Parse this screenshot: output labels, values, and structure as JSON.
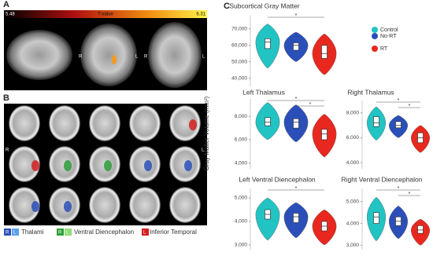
{
  "panels": {
    "a": "A",
    "b": "B",
    "c": "C"
  },
  "colorbar": {
    "min_label": "5.48",
    "title": "T-value",
    "max_label": "6.31"
  },
  "orientation": {
    "right": "R",
    "left": "L"
  },
  "atlas_legend": {
    "thalami": {
      "r": "R",
      "l": "L",
      "label": "Thalami"
    },
    "ventral_diencephalon": {
      "r": "R",
      "l": "L",
      "label": "Ventral Diencephalon"
    },
    "inferior_temporal": {
      "l": "L",
      "label": "Inferior Temporal"
    }
  },
  "y_axis_label": "Gray Matter Volume (mm³)",
  "legend": [
    {
      "name": "Control",
      "color": "#22c3c3"
    },
    {
      "name": "No-RT",
      "color": "#2b4fb8"
    },
    {
      "name": "RT",
      "color": "#e8281e"
    }
  ],
  "chart_data": [
    {
      "type": "violin",
      "title": "Subcortical Gray Matter",
      "ylim": [
        35000,
        78000
      ],
      "yticks": [
        {
          "value": 40000,
          "label": "40,000"
        },
        {
          "value": 50000,
          "label": "50,000"
        },
        {
          "value": 60000,
          "label": "60,000"
        },
        {
          "value": 70000,
          "label": "70,000"
        }
      ],
      "series": [
        {
          "name": "Control",
          "min": 46000,
          "q1": 58000,
          "median": 62000,
          "q3": 64000,
          "max": 73000
        },
        {
          "name": "No-RT",
          "min": 50000,
          "q1": 57000,
          "median": 60000,
          "q3": 61500,
          "max": 68000
        },
        {
          "name": "RT",
          "min": 42000,
          "q1": 52000,
          "median": 55000,
          "q3": 60000,
          "max": 67000
        }
      ],
      "significance": [
        "*"
      ]
    },
    {
      "type": "violin",
      "title": "Left Thalamus",
      "ylim": [
        3500,
        9500
      ],
      "yticks": [
        {
          "value": 4000,
          "label": "4,000"
        },
        {
          "value": 6000,
          "label": "6,000"
        },
        {
          "value": 8000,
          "label": "8,000"
        }
      ],
      "series": [
        {
          "name": "Control",
          "min": 6000,
          "q1": 7200,
          "median": 7500,
          "q3": 7900,
          "max": 9200
        },
        {
          "name": "No-RT",
          "min": 5800,
          "q1": 7000,
          "median": 7500,
          "q3": 7800,
          "max": 9000
        },
        {
          "name": "RT",
          "min": 4500,
          "q1": 6000,
          "median": 6500,
          "q3": 6900,
          "max": 8200
        }
      ],
      "significance": [
        "*",
        "*"
      ]
    },
    {
      "type": "violin",
      "title": "Right Thalamus",
      "ylim": [
        3500,
        9000
      ],
      "yticks": [
        {
          "value": 4000,
          "label": "4,000"
        },
        {
          "value": 6000,
          "label": "6,000"
        },
        {
          "value": 8000,
          "label": "8,000"
        }
      ],
      "series": [
        {
          "name": "Control",
          "min": 5800,
          "q1": 6900,
          "median": 7200,
          "q3": 7700,
          "max": 8500
        },
        {
          "name": "No-RT",
          "min": 6000,
          "q1": 6800,
          "median": 7000,
          "q3": 7300,
          "max": 7800
        },
        {
          "name": "RT",
          "min": 4800,
          "q1": 5600,
          "median": 6000,
          "q3": 6400,
          "max": 7000
        }
      ],
      "significance": [
        "*",
        "*"
      ]
    },
    {
      "type": "violin",
      "title": "Left Ventral Diencephalon",
      "ylim": [
        2800,
        5400
      ],
      "yticks": [
        {
          "value": 3000,
          "label": "3,000"
        },
        {
          "value": 4000,
          "label": "4,000"
        },
        {
          "value": 5000,
          "label": "5,000"
        }
      ],
      "series": [
        {
          "name": "Control",
          "min": 3200,
          "q1": 4100,
          "median": 4300,
          "q3": 4500,
          "max": 5000
        },
        {
          "name": "No-RT",
          "min": 3300,
          "q1": 3950,
          "median": 4200,
          "q3": 4350,
          "max": 4800
        },
        {
          "name": "RT",
          "min": 3000,
          "q1": 3600,
          "median": 3800,
          "q3": 4000,
          "max": 4500
        }
      ],
      "significance": [
        "*"
      ]
    },
    {
      "type": "violin",
      "title": "Right Ventral Diencephalon",
      "ylim": [
        2800,
        5600
      ],
      "yticks": [
        {
          "value": 3000,
          "label": "3,000"
        },
        {
          "value": 4000,
          "label": "4,000"
        },
        {
          "value": 5000,
          "label": "5,000"
        }
      ],
      "series": [
        {
          "name": "Control",
          "min": 3200,
          "q1": 4000,
          "median": 4300,
          "q3": 4500,
          "max": 5200
        },
        {
          "name": "No-RT",
          "min": 3300,
          "q1": 3900,
          "median": 4100,
          "q3": 4300,
          "max": 4800
        },
        {
          "name": "RT",
          "min": 3000,
          "q1": 3550,
          "median": 3700,
          "q3": 3900,
          "max": 4200
        }
      ],
      "significance": [
        "*",
        "*"
      ]
    }
  ]
}
